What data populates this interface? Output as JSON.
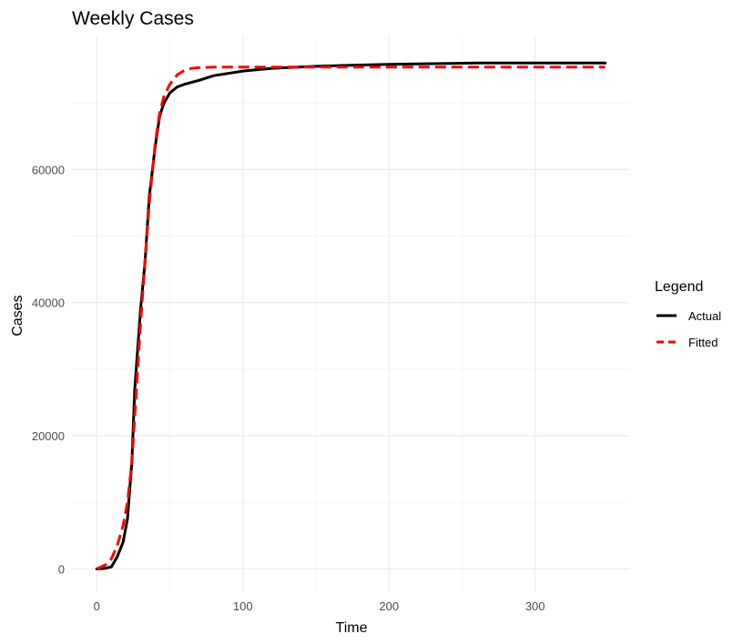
{
  "chart_data": {
    "type": "line",
    "title": "Weekly Cases",
    "xlabel": "Time",
    "ylabel": "Cases",
    "xlim": [
      -17,
      365
    ],
    "ylim": [
      -3500,
      80000
    ],
    "x_ticks": [
      0,
      100,
      200,
      300
    ],
    "x_tick_labels": [
      "0",
      "100",
      "200",
      "300"
    ],
    "y_ticks": [
      0,
      20000,
      40000,
      60000
    ],
    "y_tick_labels": [
      "0",
      "20000",
      "40000",
      "60000"
    ],
    "grid": true,
    "legend": {
      "title": "Legend",
      "position": "right",
      "entries": [
        "Actual",
        "Fitted"
      ]
    },
    "series": [
      {
        "name": "Actual",
        "color": "#000000",
        "line_style": "solid",
        "x": [
          0,
          5,
          10,
          14,
          18,
          21,
          24,
          26,
          28,
          30,
          33,
          36,
          40,
          43,
          46,
          50,
          55,
          60,
          70,
          80,
          100,
          120,
          150,
          180,
          200,
          230,
          260,
          300,
          348
        ],
        "y": [
          0,
          50,
          300,
          1800,
          4000,
          7500,
          16000,
          27000,
          33000,
          39000,
          46000,
          56000,
          63500,
          68000,
          70000,
          71500,
          72400,
          72800,
          73400,
          74100,
          74800,
          75200,
          75500,
          75700,
          75800,
          75900,
          76000,
          76000,
          76000
        ]
      },
      {
        "name": "Fitted",
        "color": "#ff0000",
        "line_style": "dashed",
        "x": [
          0,
          6,
          10,
          14,
          18,
          21,
          24,
          26,
          28,
          30,
          33,
          36,
          40,
          43,
          46,
          50,
          55,
          60,
          65,
          70,
          80,
          100,
          150,
          200,
          250,
          300,
          348
        ],
        "y": [
          0,
          600,
          1500,
          3500,
          6500,
          10000,
          16000,
          23000,
          30000,
          37000,
          46000,
          55000,
          64000,
          68500,
          71000,
          72800,
          74200,
          74900,
          75200,
          75300,
          75400,
          75400,
          75400,
          75400,
          75400,
          75400,
          75400
        ]
      }
    ]
  }
}
